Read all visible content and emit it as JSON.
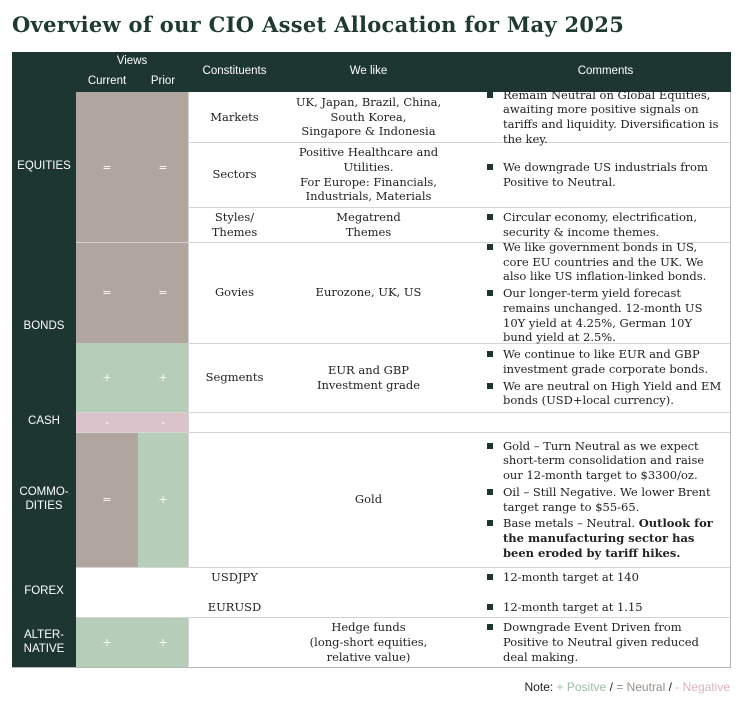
{
  "title": "Overview of our CIO Asset Allocation for May 2025",
  "headers": {
    "views": "Views",
    "current": "Current",
    "prior": "Prior",
    "constituents": "Constituents",
    "we_like": "We like",
    "comments": "Comments"
  },
  "asset_classes": {
    "equities": "EQUITIES",
    "bonds": "BONDS",
    "cash": "CASH",
    "commodities": "COMMO-\nDITIES",
    "forex": "FOREX",
    "alternative": "ALTER-\nNATIVE"
  },
  "views": {
    "equities": {
      "current": "=",
      "prior": "="
    },
    "bonds_govies": {
      "current": "=",
      "prior": "="
    },
    "bonds_segments": {
      "current": "+",
      "prior": "+"
    },
    "cash": {
      "current": "-",
      "prior": "-"
    },
    "commodities": {
      "current": "=",
      "prior": "+"
    },
    "alternative": {
      "current": "+",
      "prior": "+"
    }
  },
  "colors": {
    "positive": "#b6cdb9",
    "neutral": "#b0a69f",
    "negative": "#dbc3cb",
    "header": "#1e3631"
  },
  "rows": {
    "markets": {
      "constituent": "Markets",
      "we_like": "UK, Japan, Brazil, China,\nSouth Korea,\nSingapore & Indonesia",
      "comment_a": "Remain Neutral on Global Equities,",
      "comment_b": " awaiting more positive signals on tariffs and liquidity. ",
      "comment_c": "Diversification is the key."
    },
    "sectors": {
      "constituent": "Sectors",
      "we_like": "Positive Healthcare and\nUtilities.\nFor Europe: Financials,\nIndustrials, Materials",
      "comment": "We downgrade US industrials from Positive to Neutral."
    },
    "styles": {
      "constituent": "Styles/\nThemes",
      "we_like": "Megatrend\nThemes",
      "comment": "Circular economy, electrification, security & income themes."
    },
    "govies": {
      "constituent": "Govies",
      "we_like": "Eurozone, UK, US",
      "comment_1": "We like government bonds in US, core EU countries and the UK. We also like US inflation-linked bonds.",
      "comment_2": "Our longer-term yield forecast remains unchanged. 12-month US 10Y yield at 4.25%, German 10Y bund yield at 2.5%."
    },
    "segments": {
      "constituent": "Segments",
      "we_like": "EUR and GBP\nInvestment grade",
      "comment_1": "We continue to like EUR and GBP investment grade corporate bonds.",
      "comment_2": "We are neutral on High Yield and EM bonds (USD+local currency)."
    },
    "commodities": {
      "we_like": "Gold",
      "comment_1": "Gold – Turn Neutral as we expect short-term consolidation and raise our 12-month target to $3300/oz.",
      "comment_2": "Oil – Still Negative. We lower Brent target range to $55-65.",
      "comment_3a": "Base metals – Neutral. ",
      "comment_3b": "Outlook for the manufacturing sector has been eroded by tariff hikes."
    },
    "forex": {
      "usdjpy": "USDJPY",
      "eurusd": "EURUSD",
      "comment_1": "12-month target at 140",
      "comment_2": "12-month target at 1.15"
    },
    "alternative": {
      "we_like": "Hedge funds\n(long-short equities,\nrelative value)",
      "comment": "Downgrade Event Driven from Positive to Neutral given reduced deal making."
    }
  },
  "note": {
    "label": "Note: ",
    "positive": "+ Positve",
    "sep1": " / ",
    "neutral": "= Neutral",
    "sep2": " /  ",
    "negative": "- Negative"
  }
}
